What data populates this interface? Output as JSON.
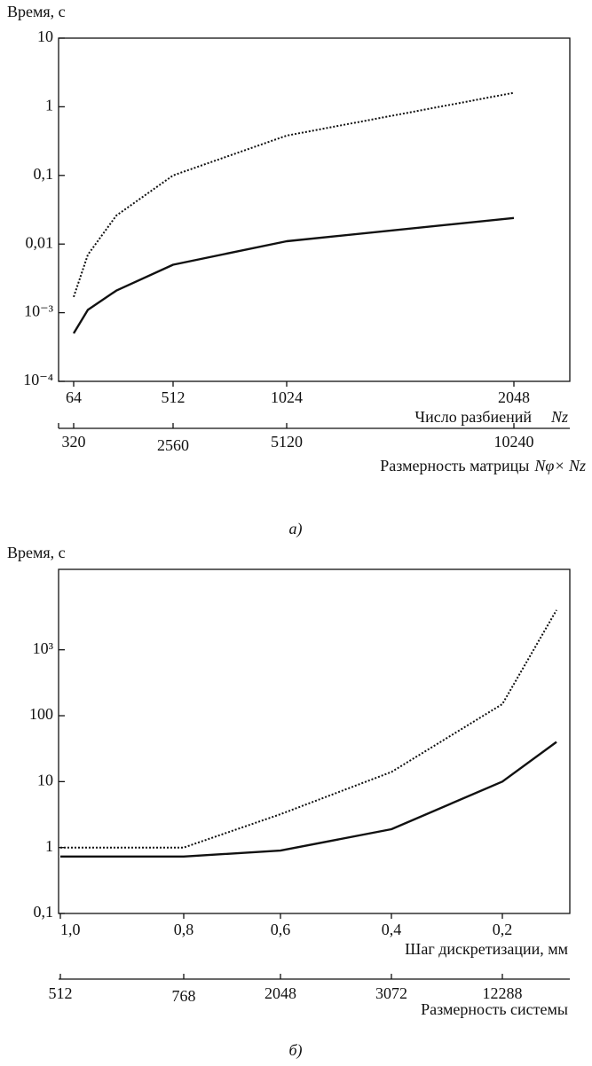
{
  "chart_data": [
    {
      "type": "line",
      "panel": "а)",
      "y_label": "Время, с",
      "x_label": "Число разбиений",
      "x_var": "Nz",
      "x2_label": "Размерность матрицы",
      "x2_var": "Nφ× Nz",
      "log_y": true,
      "ylim": [
        0.0001,
        10
      ],
      "yticks": [
        {
          "value": 0.0001,
          "label": "10⁻⁴"
        },
        {
          "value": 0.001,
          "label": "10⁻³"
        },
        {
          "value": 0.01,
          "label": "0,01"
        },
        {
          "value": 0.1,
          "label": "0,1"
        },
        1,
        10
      ],
      "x": [
        64,
        128,
        256,
        512,
        1024,
        2048
      ],
      "xlim": [
        -4,
        2300
      ],
      "xticks": [
        64,
        512,
        1024,
        2048
      ],
      "x2lim": [
        -20,
        11500
      ],
      "x2ticks": [
        320,
        2560,
        5120,
        10240
      ],
      "series": [
        {
          "color": "#111111",
          "style": "dotted",
          "values": [
            0.0017,
            0.007,
            0.026,
            0.1,
            0.38,
            1.6
          ]
        },
        {
          "color": "#111111",
          "style": "solid",
          "values": [
            0.0005,
            0.0011,
            0.0021,
            0.005,
            0.011,
            0.024
          ]
        }
      ]
    },
    {
      "type": "line",
      "panel": "б)",
      "y_label": "Время, с",
      "x_label": "Шаг дискретизации, мм",
      "x2_label": "Размерность системы",
      "log_y": true,
      "ylim": [
        0.1,
        16600
      ],
      "yticks": [
        {
          "value": 0.1,
          "label": "0,1"
        },
        1,
        10,
        100,
        {
          "value": 1000,
          "label": "10³"
        }
      ],
      "categories": [
        "1,0",
        "0,8",
        "0,6",
        "0,4",
        "0,2",
        null
      ],
      "x2_categories": [
        "512",
        "768",
        "2048",
        "3072",
        "12288",
        null
      ],
      "series": [
        {
          "color": "#111111",
          "style": "dotted",
          "values": [
            1.0,
            1.0,
            3.2,
            14,
            150,
            4000
          ]
        },
        {
          "color": "#111111",
          "style": "solid",
          "values": [
            0.73,
            0.73,
            0.9,
            1.9,
            10,
            40
          ]
        }
      ]
    }
  ]
}
